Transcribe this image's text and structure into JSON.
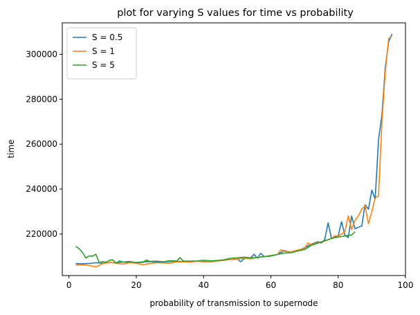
{
  "chart_data": {
    "type": "line",
    "title": "plot for varying S values for time vs probability",
    "xlabel": "probability of transmission to supernode",
    "ylabel": "time",
    "xlim": [
      -2,
      100
    ],
    "ylim": [
      201500,
      314000
    ],
    "xticks": [
      0,
      20,
      40,
      60,
      80,
      100
    ],
    "yticks": [
      220000,
      240000,
      260000,
      280000,
      300000
    ],
    "grid": false,
    "legend_position": "top-left",
    "series": [
      {
        "name": "S = 0.5",
        "color": "#1f77b4",
        "x": [
          2,
          4,
          6,
          8,
          10,
          12,
          14,
          16,
          18,
          20,
          22,
          24,
          26,
          28,
          30,
          32,
          34,
          36,
          38,
          40,
          42,
          44,
          46,
          48,
          50,
          51,
          52,
          54,
          55,
          56,
          57,
          58,
          60,
          62,
          64,
          66,
          68,
          70,
          72,
          74,
          75,
          76,
          77,
          78,
          80,
          81,
          82,
          83,
          84,
          85,
          86,
          87,
          88,
          89,
          90,
          91,
          92,
          93,
          94,
          95,
          96
        ],
        "values": [
          206800,
          206700,
          206900,
          207200,
          207000,
          207300,
          207200,
          207500,
          207400,
          207300,
          207600,
          207700,
          207500,
          207600,
          207800,
          207900,
          207700,
          207700,
          207900,
          207600,
          207900,
          208100,
          208300,
          208600,
          208900,
          207600,
          209000,
          209400,
          211000,
          209200,
          211400,
          209900,
          210200,
          210900,
          212600,
          211700,
          212600,
          213800,
          215400,
          216600,
          216000,
          217500,
          225000,
          218100,
          218900,
          225500,
          219400,
          218400,
          228000,
          222300,
          223000,
          223500,
          233000,
          231000,
          239500,
          235500,
          262000,
          273000,
          294000,
          305500,
          309000
        ]
      },
      {
        "name": "S = 1",
        "color": "#ff7f0e",
        "x": [
          2,
          4,
          6,
          8,
          10,
          12,
          14,
          16,
          18,
          20,
          22,
          24,
          26,
          28,
          30,
          32,
          34,
          36,
          38,
          40,
          42,
          44,
          46,
          48,
          50,
          52,
          54,
          56,
          58,
          60,
          62,
          63,
          64,
          66,
          68,
          70,
          71,
          72,
          74,
          76,
          78,
          79,
          80,
          82,
          83,
          84,
          85,
          86,
          87,
          88,
          89,
          90,
          91,
          92,
          93,
          94,
          95,
          96
        ],
        "values": [
          206200,
          206300,
          206000,
          205300,
          206800,
          207400,
          207000,
          206600,
          207200,
          207000,
          206300,
          206800,
          207200,
          207100,
          207000,
          207600,
          207600,
          207500,
          207900,
          207700,
          207600,
          207900,
          208300,
          208600,
          208800,
          209200,
          208900,
          209600,
          209900,
          210400,
          210900,
          213000,
          212300,
          212000,
          212900,
          213500,
          216000,
          215200,
          216200,
          216800,
          218000,
          219200,
          219000,
          221000,
          228000,
          222000,
          226000,
          228000,
          231000,
          232500,
          224500,
          230000,
          236000,
          237000,
          270000,
          292000,
          307000,
          308000
        ]
      },
      {
        "name": "S = 5",
        "color": "#2ca02c",
        "x": [
          2,
          3,
          4,
          5,
          6,
          7,
          8,
          9,
          10,
          11,
          12,
          13,
          14,
          15,
          16,
          18,
          20,
          22,
          23,
          24,
          26,
          28,
          30,
          32,
          33,
          34,
          36,
          38,
          40,
          42,
          44,
          46,
          48,
          50,
          52,
          54,
          56,
          58,
          60,
          62,
          64,
          66,
          68,
          70,
          72,
          74,
          76,
          78,
          80,
          82,
          84,
          85
        ],
        "values": [
          214500,
          213500,
          211800,
          209300,
          210200,
          210100,
          211000,
          207100,
          207700,
          207400,
          208300,
          208500,
          207000,
          208100,
          207500,
          207800,
          207200,
          207400,
          208400,
          207800,
          207900,
          207600,
          208100,
          208000,
          209500,
          207900,
          207900,
          208000,
          208300,
          208000,
          208200,
          208500,
          209200,
          209400,
          209700,
          209400,
          209500,
          209900,
          210300,
          210900,
          211500,
          211700,
          212400,
          213100,
          214900,
          215900,
          217000,
          218000,
          218600,
          219200,
          219500,
          221000
        ]
      }
    ]
  }
}
